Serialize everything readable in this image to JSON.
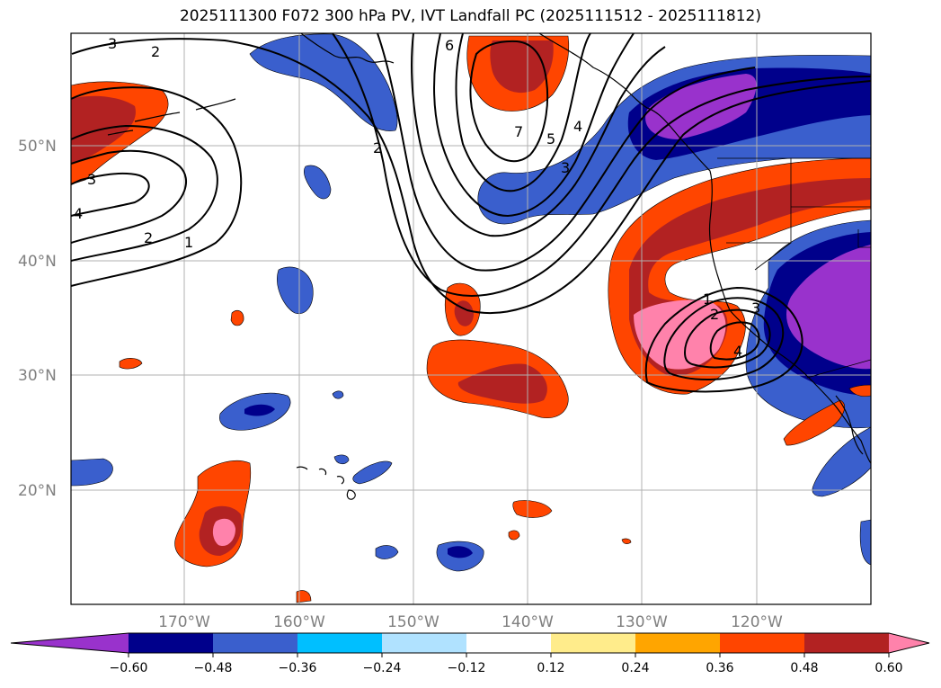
{
  "title": "2025111300 F072 300 hPa PV, IVT Landfall PC (2025111512 - 2025111812)",
  "map": {
    "lat_labels": [
      "50°N",
      "40°N",
      "30°N",
      "20°N"
    ],
    "lon_labels": [
      "170°W",
      "160°W",
      "150°W",
      "140°W",
      "130°W",
      "120°W"
    ],
    "contour_labels": [
      "3",
      "2",
      "3",
      "4",
      "2",
      "1",
      "6",
      "7",
      "5",
      "4",
      "3",
      "2",
      "1",
      "2",
      "3",
      "4"
    ]
  },
  "colorbar": {
    "ticks": [
      "−0.60",
      "−0.48",
      "−0.36",
      "−0.24",
      "−0.12",
      "0.12",
      "0.24",
      "0.36",
      "0.48",
      "0.60"
    ],
    "colors": [
      "#9932cc",
      "#00008b",
      "#3a5fcd",
      "#00bfff",
      "#b0e2ff",
      "#ffffff",
      "#ffec8b",
      "#ffa500",
      "#ff4500",
      "#b22222",
      "#ff82ab"
    ]
  },
  "colors": {
    "neg_strong": "#9932cc",
    "neg_dark": "#00008b",
    "neg_mid": "#3a5fcd",
    "pos_mid": "#ff4500",
    "pos_dark": "#b22222",
    "pos_strong": "#ff82ab"
  }
}
